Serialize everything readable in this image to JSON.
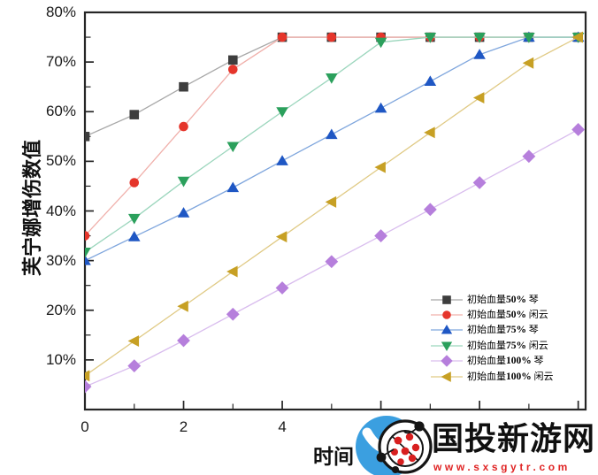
{
  "chart_data": {
    "type": "line",
    "title": "",
    "xlabel": "时间",
    "ylabel": "芙宁娜增伤数值",
    "xlim": [
      0,
      10.15
    ],
    "ylim": [
      0,
      80
    ],
    "grid": false,
    "legend_position": "inside-right-lower",
    "x": [
      0,
      1,
      2,
      3,
      4,
      5,
      6,
      7,
      8,
      9,
      10
    ],
    "x_ticks": {
      "values": [
        0,
        2,
        4,
        6,
        8,
        10
      ],
      "labels": [
        "0",
        "2",
        "4",
        "6",
        "8",
        "10"
      ],
      "minor": [
        1,
        3,
        5,
        7,
        9
      ]
    },
    "y_ticks": {
      "values": [
        10,
        20,
        30,
        40,
        50,
        60,
        70,
        80
      ],
      "labels": [
        "10%",
        "20%",
        "30%",
        "40%",
        "50%",
        "60%",
        "70%",
        "80%"
      ],
      "minor": [
        5,
        15,
        25,
        35,
        45,
        55,
        65,
        75
      ]
    },
    "axis_color": "#262626",
    "series": [
      {
        "label_prefix": "初始血量",
        "label_pct": "50%",
        "label_suffix": " 琴",
        "marker": "square",
        "color": "#3d3d3d",
        "line_color": "#a8a8a8",
        "values": [
          55,
          59.4,
          65,
          70.4,
          75,
          75,
          75,
          75,
          75,
          75,
          75
        ]
      },
      {
        "label_prefix": "初始血量",
        "label_pct": "50%",
        "label_suffix": " 闲云",
        "marker": "circle",
        "color": "#e5352b",
        "line_color": "#f0b0ab",
        "values": [
          35,
          45.7,
          57,
          68.5,
          75,
          75,
          75,
          75,
          75,
          75,
          75
        ]
      },
      {
        "label_prefix": "初始血量",
        "label_pct": "75%",
        "label_suffix": " 琴",
        "marker": "triangle-up",
        "color": "#1f57c4",
        "line_color": "#7fa6dd",
        "values": [
          30,
          34.8,
          39.6,
          44.7,
          50.1,
          55.4,
          60.7,
          66.1,
          71.5,
          75,
          75
        ]
      },
      {
        "label_prefix": "初始血量",
        "label_pct": "75%",
        "label_suffix": " 闲云",
        "marker": "triangle-down",
        "color": "#2ba05c",
        "line_color": "#9cd6bd",
        "values": [
          31.7,
          38.5,
          46,
          53,
          60,
          66.8,
          74,
          75,
          75,
          75,
          75
        ]
      },
      {
        "label_prefix": "初始血量",
        "label_pct": "100%",
        "label_suffix": " 琴",
        "marker": "diamond",
        "color": "#b67fdc",
        "line_color": "#d9bdee",
        "values": [
          4.6,
          8.8,
          13.9,
          19.2,
          24.5,
          29.8,
          35,
          40.3,
          45.7,
          51,
          56.4
        ]
      },
      {
        "label_prefix": "初始血量",
        "label_pct": "100%",
        "label_suffix": " 闲云",
        "marker": "triangle-left",
        "color": "#c7a024",
        "line_color": "#e0ca85",
        "values": [
          6.8,
          13.8,
          20.8,
          27.8,
          34.8,
          41.8,
          48.8,
          55.8,
          62.8,
          69.8,
          75
        ]
      }
    ]
  },
  "watermark": {
    "site_name": "国投新游网",
    "url": "www.sxsgytr.com",
    "blue": "#3b9fe0",
    "url_color": "#e02525"
  }
}
